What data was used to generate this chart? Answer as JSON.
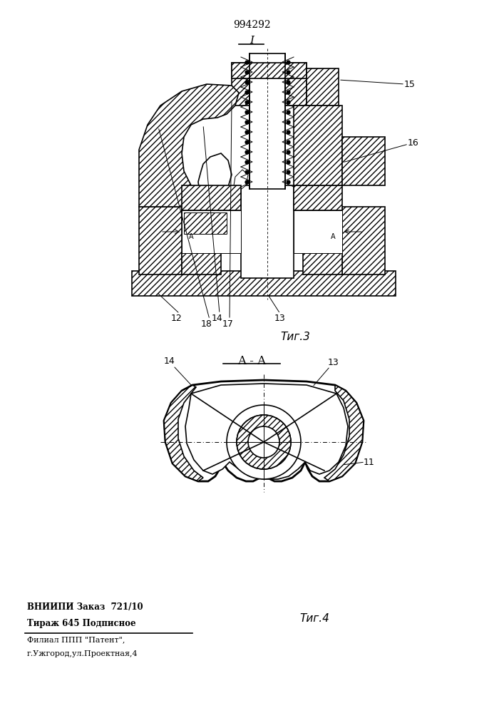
{
  "title": "994292",
  "fig3_label": "Τиг.3",
  "fig4_label": "Τиг.4",
  "section_label": "A - A",
  "bottom_text_line1": "ВНИИПИ Заказ  721/10",
  "bottom_text_line2": "Тираж 645 Подписное",
  "bottom_text_line3": "Филиал ППП \"Патент\",",
  "bottom_text_line4": "г.Ужгород,ул.Проектная,4",
  "bg_color": "#ffffff",
  "line_color": "#000000",
  "fig_number_top": "I"
}
